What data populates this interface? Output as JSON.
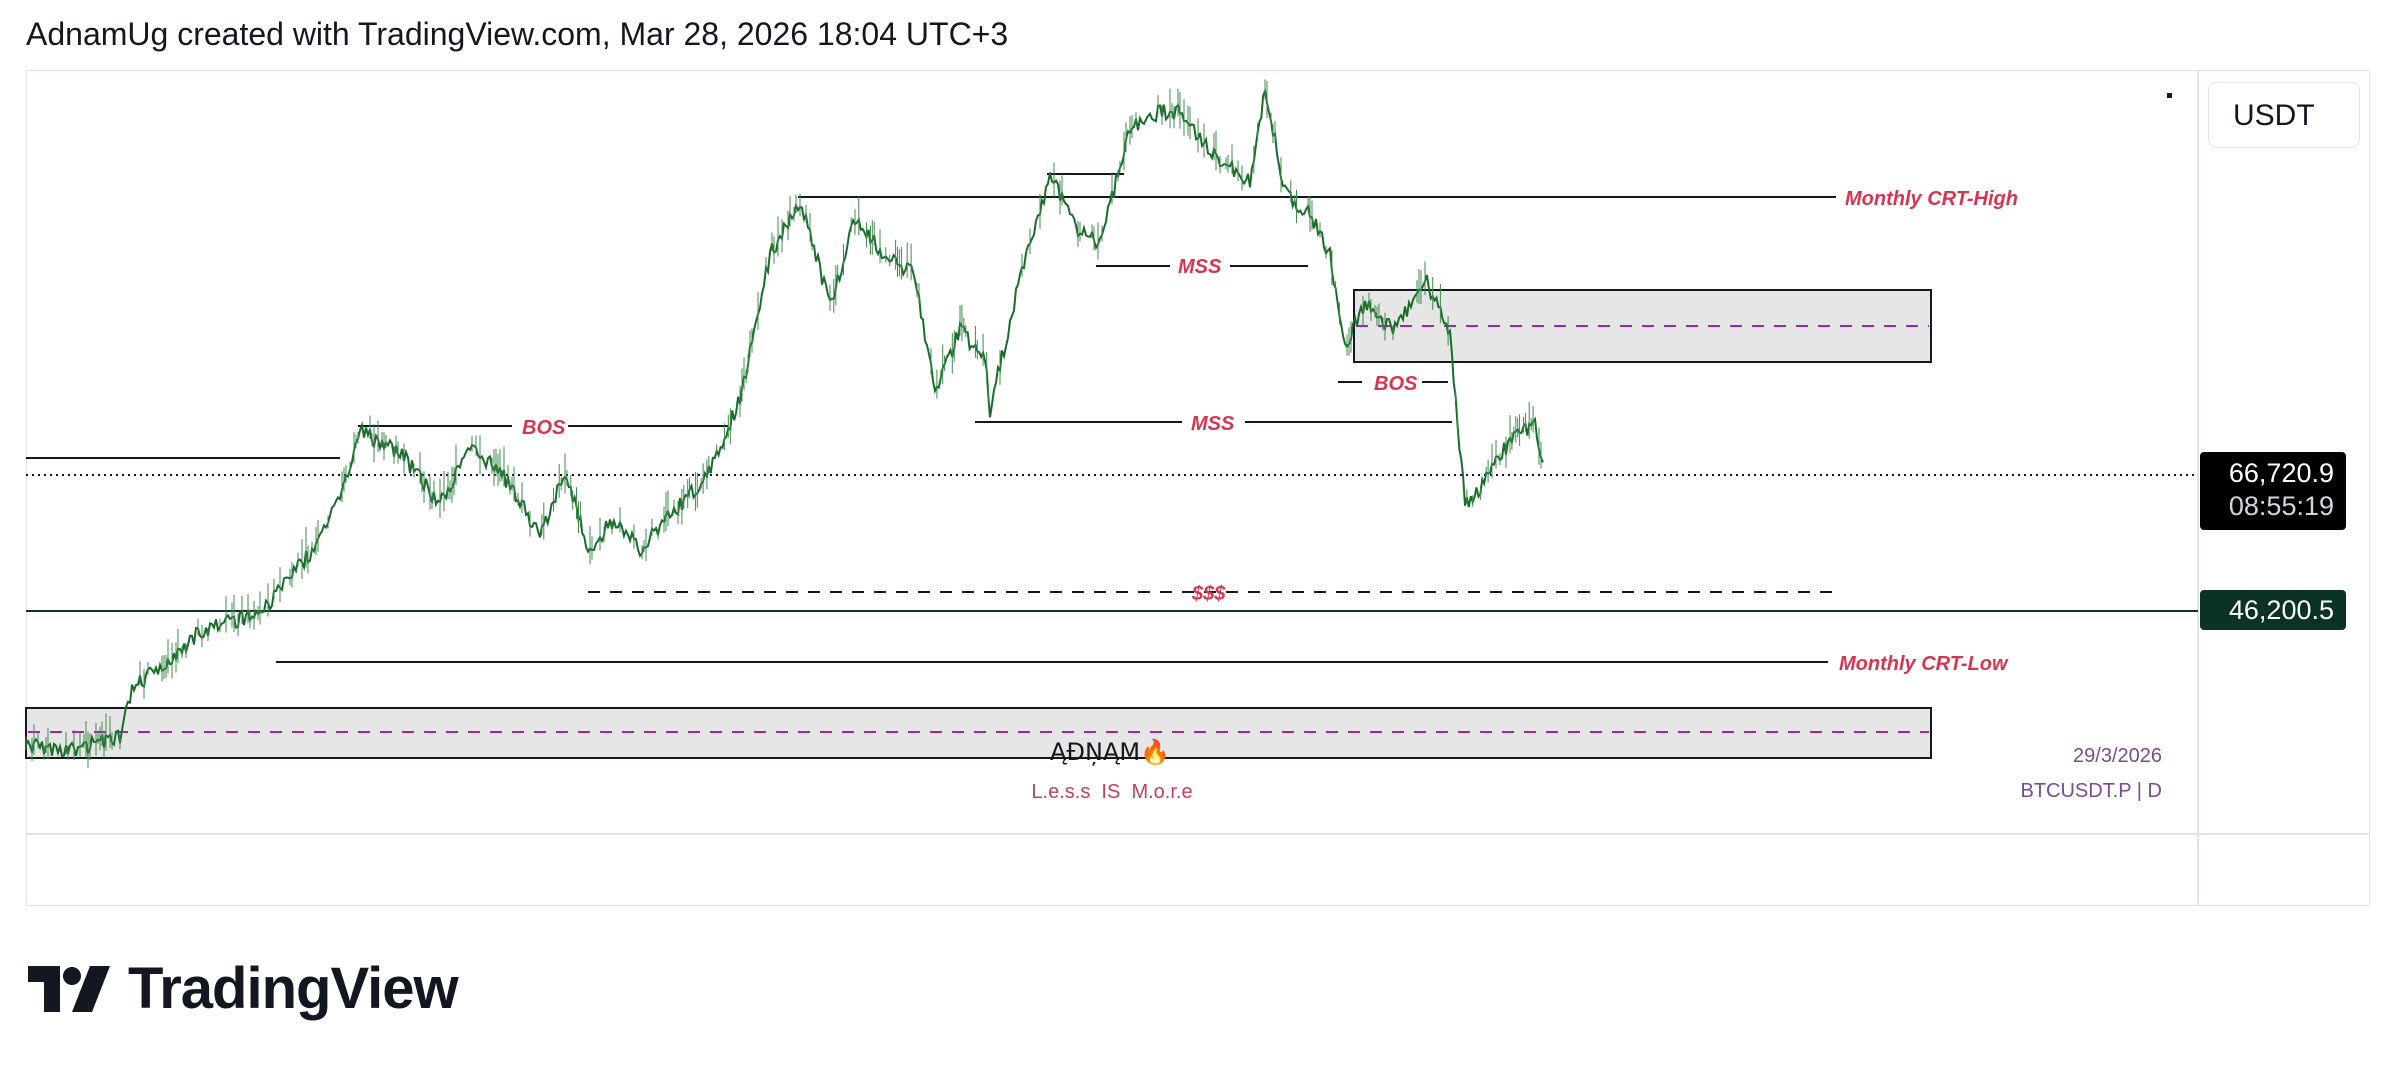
{
  "header": {
    "caption": "AdnamUg created with TradingView.com, Mar 28, 2026 18:04 UTC+3"
  },
  "currency_button": {
    "label": "USDT"
  },
  "price_scale": {
    "last_price": "66,720.9",
    "countdown": "08:55:19",
    "level_price": "46,200.5"
  },
  "annotations": {
    "monthly_crt_high": "Monthly CRT-High",
    "monthly_crt_low": "Monthly CRT-Low",
    "mss_upper": "MSS",
    "mss_lower": "MSS",
    "bos_left": "BOS",
    "bos_right": "BOS",
    "liquidity": "$$$"
  },
  "watermark": {
    "signature": "ĄĐŅĄM🔥",
    "tagline": "L.e.s.s  IS  M.o.r.e",
    "date": "29/3/2026",
    "symbol": "BTCUSDT.P | D"
  },
  "brand": {
    "name": "TradingView"
  },
  "colors": {
    "candle_green": "#1b6b2b",
    "annotation_red": "#d6364f",
    "zone_fill": "#e6e6e6",
    "zone_midline": "#9c27b0",
    "watermark_purple": "#7b4a8f",
    "watermark_red": "#c2405e",
    "level_tag_bg": "#0b3324",
    "last_price_bg": "#000000"
  },
  "icons": [
    "tradingview-logo-icon"
  ]
}
